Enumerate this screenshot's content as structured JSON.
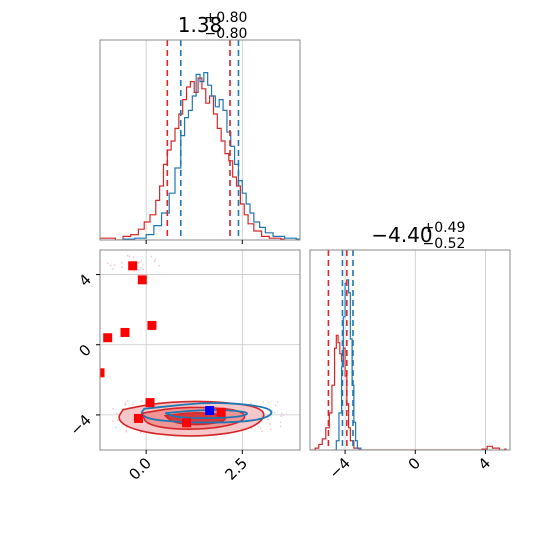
{
  "colors": {
    "red": "#d62728",
    "red_fill_dark": "#d62728",
    "red_fill_light": "#f3b3b4",
    "blue": "#1f77b4",
    "grid": "#c8c8c8",
    "frame": "#888888",
    "marker_red": "#ff0000",
    "marker_blue": "#0000ff"
  },
  "chart_data": {
    "type": "corner",
    "parameters": [
      {
        "id": "p1",
        "title": {
          "median": "1.38",
          "plus": "+0.80",
          "minus": "−0.80"
        },
        "range": [
          -1.2,
          4.0
        ],
        "ticks": [
          {
            "value": 0.0,
            "label": "0.0"
          },
          {
            "value": 2.5,
            "label": "2.5"
          }
        ],
        "quantiles_red": [
          0.55,
          2.18
        ],
        "quantiles_blue": [
          0.9,
          2.4
        ]
      },
      {
        "id": "p2",
        "title": {
          "median": "−4.40",
          "plus": "+0.49",
          "minus": "−0.52"
        },
        "range": [
          -6.0,
          5.4
        ],
        "ticks": [
          {
            "value": -4,
            "label": "−4"
          },
          {
            "value": 0,
            "label": "0"
          },
          {
            "value": 4,
            "label": "4"
          }
        ],
        "quantiles_red": [
          -4.95,
          -3.9
        ],
        "quantiles_blue": [
          -4.15,
          -3.55
        ]
      }
    ],
    "hist1_red": [
      [
        -1.2,
        0.01
      ],
      [
        -1.0,
        0.01
      ],
      [
        -0.8,
        0.0
      ],
      [
        -0.6,
        0.02
      ],
      [
        -0.4,
        0.03
      ],
      [
        -0.2,
        0.06
      ],
      [
        -0.05,
        0.1
      ],
      [
        0.1,
        0.14
      ],
      [
        0.25,
        0.22
      ],
      [
        0.35,
        0.3
      ],
      [
        0.45,
        0.42
      ],
      [
        0.55,
        0.5
      ],
      [
        0.65,
        0.55
      ],
      [
        0.75,
        0.62
      ],
      [
        0.85,
        0.7
      ],
      [
        0.95,
        0.78
      ],
      [
        1.05,
        0.85
      ],
      [
        1.15,
        0.88
      ],
      [
        1.25,
        0.82
      ],
      [
        1.35,
        0.9
      ],
      [
        1.45,
        0.84
      ],
      [
        1.55,
        0.76
      ],
      [
        1.65,
        0.8
      ],
      [
        1.75,
        0.7
      ],
      [
        1.85,
        0.62
      ],
      [
        1.95,
        0.55
      ],
      [
        2.05,
        0.48
      ],
      [
        2.15,
        0.44
      ],
      [
        2.25,
        0.35
      ],
      [
        2.35,
        0.3
      ],
      [
        2.45,
        0.2
      ],
      [
        2.55,
        0.14
      ],
      [
        2.65,
        0.09
      ],
      [
        2.8,
        0.05
      ],
      [
        3.0,
        0.02
      ],
      [
        3.2,
        0.01
      ],
      [
        3.5,
        0.005
      ]
    ],
    "hist1_blue": [
      [
        -0.6,
        0.005
      ],
      [
        -0.3,
        0.01
      ],
      [
        0.0,
        0.03
      ],
      [
        0.2,
        0.08
      ],
      [
        0.4,
        0.15
      ],
      [
        0.6,
        0.26
      ],
      [
        0.75,
        0.4
      ],
      [
        0.9,
        0.58
      ],
      [
        1.0,
        0.68
      ],
      [
        1.1,
        0.72
      ],
      [
        1.2,
        0.8
      ],
      [
        1.3,
        0.92
      ],
      [
        1.4,
        0.88
      ],
      [
        1.5,
        0.93
      ],
      [
        1.6,
        0.86
      ],
      [
        1.7,
        0.8
      ],
      [
        1.8,
        0.74
      ],
      [
        1.9,
        0.78
      ],
      [
        2.0,
        0.72
      ],
      [
        2.1,
        0.6
      ],
      [
        2.2,
        0.52
      ],
      [
        2.3,
        0.42
      ],
      [
        2.4,
        0.33
      ],
      [
        2.5,
        0.26
      ],
      [
        2.6,
        0.2
      ],
      [
        2.7,
        0.15
      ],
      [
        2.8,
        0.1
      ],
      [
        2.95,
        0.07
      ],
      [
        3.1,
        0.04
      ],
      [
        3.3,
        0.02
      ],
      [
        3.6,
        0.01
      ],
      [
        3.9,
        0.005
      ]
    ],
    "hist2_red": [
      [
        -6.0,
        0.0
      ],
      [
        -5.7,
        0.01
      ],
      [
        -5.5,
        0.03
      ],
      [
        -5.3,
        0.06
      ],
      [
        -5.1,
        0.12
      ],
      [
        -4.9,
        0.2
      ],
      [
        -4.75,
        0.35
      ],
      [
        -4.6,
        0.55
      ],
      [
        -4.5,
        0.62
      ],
      [
        -4.4,
        0.58
      ],
      [
        -4.3,
        0.52
      ],
      [
        -4.2,
        0.48
      ],
      [
        -4.1,
        0.55
      ],
      [
        -4.0,
        0.4
      ],
      [
        -3.9,
        0.25
      ],
      [
        -3.8,
        0.12
      ],
      [
        -3.7,
        0.05
      ],
      [
        -3.5,
        0.01
      ],
      [
        -3.2,
        0.0
      ],
      [
        3.8,
        0.005
      ],
      [
        4.1,
        0.02
      ],
      [
        4.4,
        0.01
      ],
      [
        4.8,
        0.0
      ],
      [
        5.1,
        0.005
      ]
    ],
    "hist2_blue": [
      [
        -4.7,
        0.0
      ],
      [
        -4.5,
        0.05
      ],
      [
        -4.35,
        0.2
      ],
      [
        -4.2,
        0.45
      ],
      [
        -4.1,
        0.72
      ],
      [
        -4.0,
        0.9
      ],
      [
        -3.9,
        0.92
      ],
      [
        -3.8,
        0.85
      ],
      [
        -3.7,
        0.6
      ],
      [
        -3.6,
        0.35
      ],
      [
        -3.5,
        0.15
      ],
      [
        -3.4,
        0.05
      ],
      [
        -3.3,
        0.01
      ],
      [
        -3.1,
        0.0
      ]
    ],
    "contour_blue": [
      [
        [
          -0.05,
          -3.65
        ],
        [
          0.6,
          -3.5
        ],
        [
          1.5,
          -3.3
        ],
        [
          2.4,
          -3.35
        ],
        [
          3.2,
          -3.6
        ],
        [
          3.3,
          -4.0
        ],
        [
          2.8,
          -4.35
        ],
        [
          1.8,
          -4.45
        ],
        [
          0.8,
          -4.4
        ],
        [
          0.1,
          -4.25
        ],
        [
          -0.15,
          -3.95
        ]
      ],
      [
        [
          0.5,
          -3.9
        ],
        [
          1.2,
          -3.75
        ],
        [
          2.0,
          -3.7
        ],
        [
          2.7,
          -3.85
        ],
        [
          2.5,
          -4.1
        ],
        [
          1.6,
          -4.2
        ],
        [
          0.8,
          -4.15
        ]
      ]
    ],
    "contour_red": [
      [
        [
          -0.6,
          -3.7
        ],
        [
          0.2,
          -3.35
        ],
        [
          1.2,
          -3.2
        ],
        [
          2.2,
          -3.3
        ],
        [
          3.0,
          -3.6
        ],
        [
          3.1,
          -4.2
        ],
        [
          2.6,
          -4.9
        ],
        [
          1.4,
          -5.25
        ],
        [
          0.2,
          -5.1
        ],
        [
          -0.5,
          -4.7
        ],
        [
          -0.75,
          -4.2
        ]
      ],
      [
        [
          -0.1,
          -3.9
        ],
        [
          0.7,
          -3.6
        ],
        [
          1.6,
          -3.55
        ],
        [
          2.5,
          -3.75
        ],
        [
          2.6,
          -4.3
        ],
        [
          1.9,
          -4.75
        ],
        [
          0.8,
          -4.85
        ],
        [
          0.0,
          -4.55
        ]
      ],
      [
        [
          0.5,
          -4.05
        ],
        [
          1.2,
          -3.85
        ],
        [
          2.0,
          -3.95
        ],
        [
          2.1,
          -4.35
        ],
        [
          1.4,
          -4.6
        ],
        [
          0.7,
          -4.45
        ]
      ]
    ],
    "scatter_red_markers": [
      [
        -1.2,
        -1.6
      ],
      [
        -1.0,
        0.4
      ],
      [
        -0.55,
        0.7
      ],
      [
        -0.35,
        4.5
      ],
      [
        -0.1,
        3.7
      ],
      [
        0.15,
        1.1
      ],
      [
        -0.2,
        -4.2
      ],
      [
        0.1,
        -3.3
      ],
      [
        1.05,
        -4.45
      ],
      [
        1.95,
        -3.85
      ]
    ],
    "scatter_blue_markers": [
      [
        1.65,
        -3.75
      ]
    ]
  }
}
